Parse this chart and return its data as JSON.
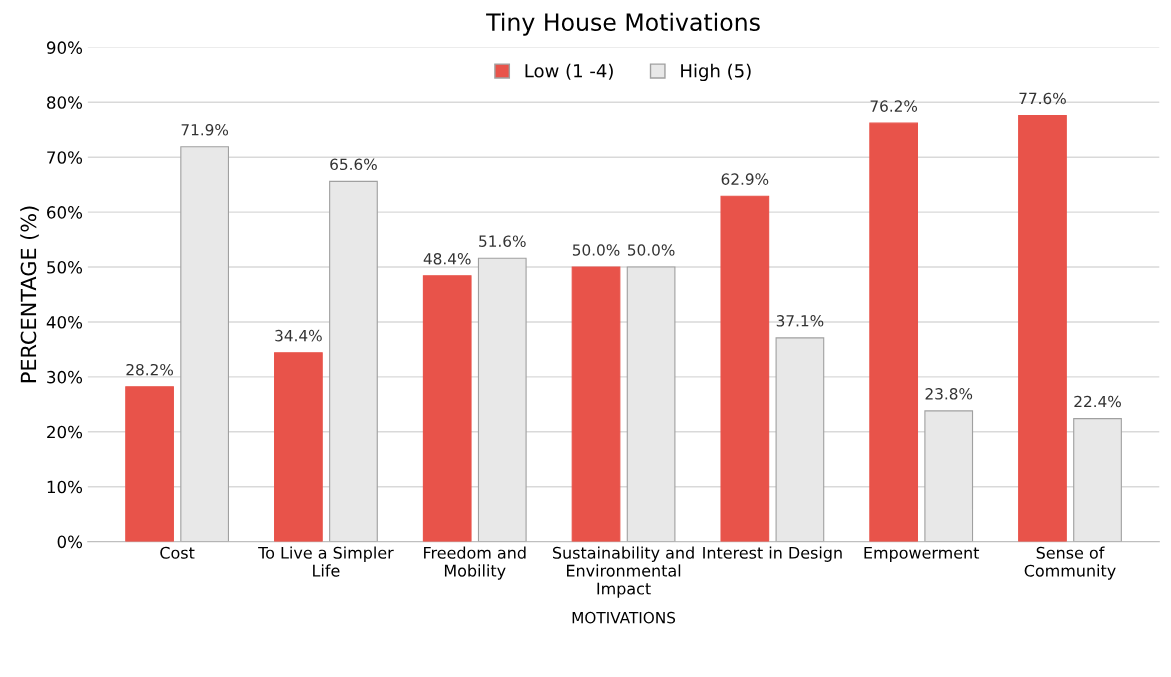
{
  "chart_data": {
    "type": "bar",
    "title": "Tiny House Motivations",
    "xlabel": "MOTIVATIONS",
    "ylabel": "PERCENTAGE (%)",
    "categories": [
      "Cost",
      "To Live a Simpler\nLife",
      "Freedom and\nMobility",
      "Sustainability and\nEnvironmental\nImpact",
      "Interest in Design",
      "Empowerment",
      "Sense of\nCommunity"
    ],
    "series": [
      {
        "name": "Low (1 -4)",
        "color": "#e8534a",
        "values": [
          28.2,
          34.4,
          48.4,
          50.0,
          62.9,
          76.2,
          77.6
        ],
        "value_labels": [
          "28.2%",
          "34.4%",
          "48.4%",
          "50.0%",
          "62.9%",
          "76.2%",
          "77.6%"
        ]
      },
      {
        "name": "High (5)",
        "color": "#e8e8e8",
        "values": [
          71.9,
          65.6,
          51.6,
          50.0,
          37.1,
          23.8,
          22.4
        ],
        "value_labels": [
          "71.9%",
          "65.6%",
          "51.6%",
          "50.0%",
          "37.1%",
          "23.8%",
          "22.4%"
        ]
      }
    ],
    "ylim": [
      0,
      90
    ],
    "yticks": [
      {
        "value": 0,
        "label": "0%"
      },
      {
        "value": 10,
        "label": "10%"
      },
      {
        "value": 20,
        "label": "20%"
      },
      {
        "value": 30,
        "label": "30%"
      },
      {
        "value": 40,
        "label": "40%"
      },
      {
        "value": 50,
        "label": "50%"
      },
      {
        "value": 60,
        "label": "60%"
      },
      {
        "value": 70,
        "label": "70%"
      },
      {
        "value": 80,
        "label": "80%"
      },
      {
        "value": 90,
        "label": "90%"
      }
    ],
    "grid": "y",
    "legend": "top"
  }
}
